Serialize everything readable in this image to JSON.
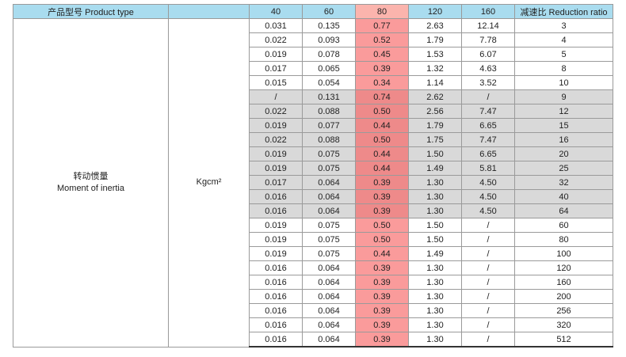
{
  "header": {
    "product_type": "产品型号 Product type",
    "sizes": [
      "40",
      "60",
      "80",
      "120",
      "160"
    ],
    "ratio": "减速比 Reduction ratio"
  },
  "table": {
    "label_cn": "转动惯量",
    "label_en": "Moment of inertia",
    "unit": "Kgcm²",
    "rows": [
      [
        "0.031",
        "0.135",
        "0.77",
        "2.63",
        "12.14",
        "3"
      ],
      [
        "0.022",
        "0.093",
        "0.52",
        "1.79",
        "7.78",
        "4"
      ],
      [
        "0.019",
        "0.078",
        "0.45",
        "1.53",
        "6.07",
        "5"
      ],
      [
        "0.017",
        "0.065",
        "0.39",
        "1.32",
        "4.63",
        "8"
      ],
      [
        "0.015",
        "0.054",
        "0.34",
        "1.14",
        "3.52",
        "10"
      ],
      [
        "/",
        "0.131",
        "0.74",
        "2.62",
        "/",
        "9"
      ],
      [
        "0.022",
        "0.088",
        "0.50",
        "2.56",
        "7.47",
        "12"
      ],
      [
        "0.019",
        "0.077",
        "0.44",
        "1.79",
        "6.65",
        "15"
      ],
      [
        "0.022",
        "0.088",
        "0.50",
        "1.75",
        "7.47",
        "16"
      ],
      [
        "0.019",
        "0.075",
        "0.44",
        "1.50",
        "6.65",
        "20"
      ],
      [
        "0.019",
        "0.075",
        "0.44",
        "1.49",
        "5.81",
        "25"
      ],
      [
        "0.017",
        "0.064",
        "0.39",
        "1.30",
        "4.50",
        "32"
      ],
      [
        "0.016",
        "0.064",
        "0.39",
        "1.30",
        "4.50",
        "40"
      ],
      [
        "0.016",
        "0.064",
        "0.39",
        "1.30",
        "4.50",
        "64"
      ],
      [
        "0.019",
        "0.075",
        "0.50",
        "1.50",
        "/",
        "60"
      ],
      [
        "0.019",
        "0.075",
        "0.50",
        "1.50",
        "/",
        "80"
      ],
      [
        "0.019",
        "0.075",
        "0.44",
        "1.49",
        "/",
        "100"
      ],
      [
        "0.016",
        "0.064",
        "0.39",
        "1.30",
        "/",
        "120"
      ],
      [
        "0.016",
        "0.064",
        "0.39",
        "1.30",
        "/",
        "160"
      ],
      [
        "0.016",
        "0.064",
        "0.39",
        "1.30",
        "/",
        "200"
      ],
      [
        "0.016",
        "0.064",
        "0.39",
        "1.30",
        "/",
        "256"
      ],
      [
        "0.016",
        "0.064",
        "0.39",
        "1.30",
        "/",
        "320"
      ],
      [
        "0.016",
        "0.064",
        "0.39",
        "1.30",
        "/",
        "512"
      ]
    ]
  }
}
